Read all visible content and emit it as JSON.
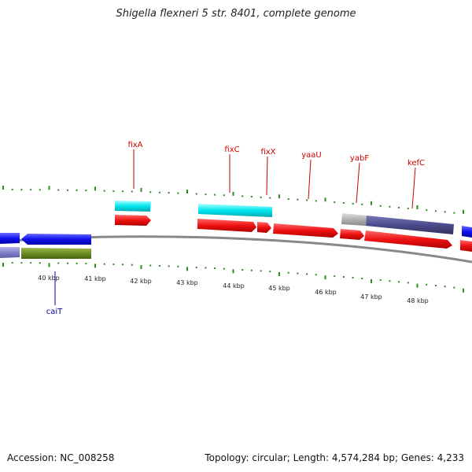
{
  "title": "Shigella flexneri 5 str. 8401, complete genome",
  "footer": {
    "accession": "Accession: NC_008258",
    "summary": "Topology: circular; Length: 4,574,284 bp; Genes: 4,233"
  },
  "kbp_labels": [
    "40 kbp",
    "41 kbp",
    "42 kbp",
    "43 kbp",
    "44 kbp",
    "45 kbp",
    "46 kbp",
    "47 kbp",
    "48 kbp"
  ],
  "gene_labels": [
    {
      "name": "fixA",
      "color": "#cc0000"
    },
    {
      "name": "fixC",
      "color": "#cc0000"
    },
    {
      "name": "fixX",
      "color": "#cc0000"
    },
    {
      "name": "yaaU",
      "color": "#cc0000"
    },
    {
      "name": "yabF",
      "color": "#cc0000"
    },
    {
      "name": "kefC",
      "color": "#cc0000"
    },
    {
      "name": "caiT",
      "color": "#000099"
    }
  ],
  "colors": {
    "forward_cds": "#ee1111",
    "reverse_cds": "#1111ee",
    "cyan_feature": "#00e5ee",
    "olive_feature": "#6b8e23",
    "slate_feature": "#4b4a8a",
    "grey_feature": "#b0b0b0",
    "backbone": "#888888",
    "ticks": "#2e8b22"
  }
}
